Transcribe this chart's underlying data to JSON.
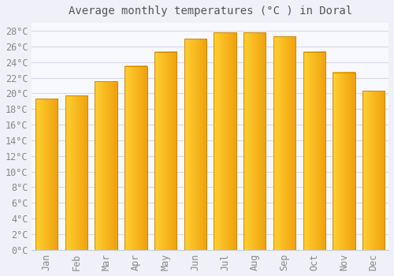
{
  "title": "Average monthly temperatures (°C ) in Doral",
  "months": [
    "Jan",
    "Feb",
    "Mar",
    "Apr",
    "May",
    "Jun",
    "Jul",
    "Aug",
    "Sep",
    "Oct",
    "Nov",
    "Dec"
  ],
  "values": [
    19.3,
    19.7,
    21.5,
    23.5,
    25.3,
    27.0,
    27.8,
    27.8,
    27.3,
    25.3,
    22.7,
    20.3
  ],
  "bar_color_left": "#FFD040",
  "bar_color_right": "#F0A000",
  "bar_edge_color": "#D08800",
  "background_color": "#f0f0f8",
  "plot_bg_color": "#f8f8ff",
  "grid_color": "#d8d8e8",
  "ylim": [
    0,
    29
  ],
  "ytick_step": 2,
  "title_fontsize": 10,
  "tick_fontsize": 8.5,
  "font_family": "monospace"
}
